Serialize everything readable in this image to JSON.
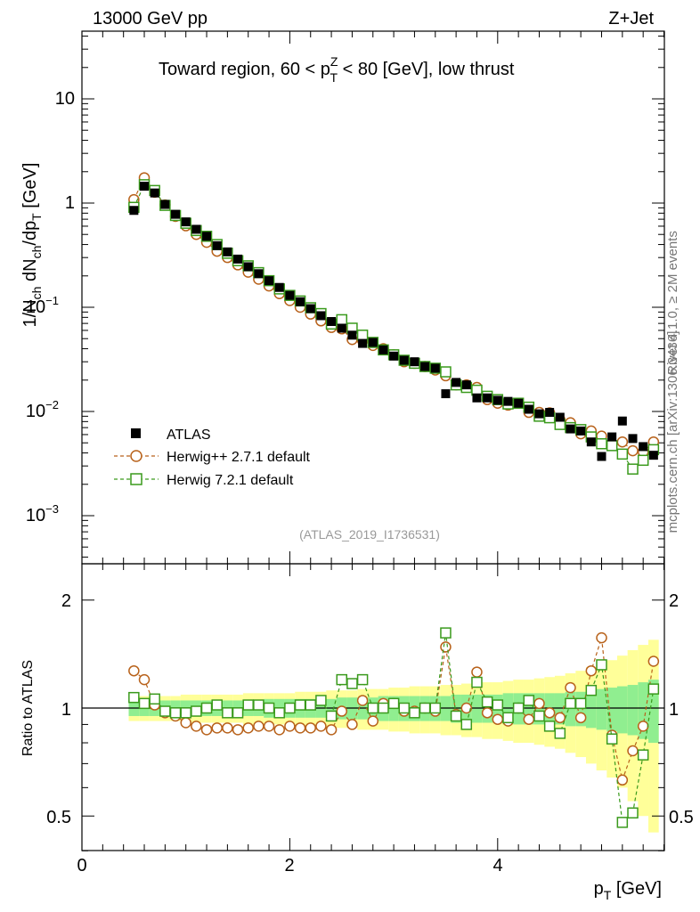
{
  "header": {
    "energy_label": "13000 GeV pp",
    "process_label": "Z+Jet",
    "region_prefix": "Toward region, 60 < p",
    "region_sup": "Z",
    "region_sub": "T",
    "region_suffix": " < 80 [GeV], low thrust",
    "analysis_id": "(ATLAS_2019_I1736531)",
    "rivet_label": "Rivet 4.1.0, ≥ 2M events",
    "mcplots_label": "mcplots.cern.ch [arXiv:1306.3436]"
  },
  "axes": {
    "y_main": "1/N_ch dN_ch/dp_T [GeV]",
    "y_ratio": "Ratio to ATLAS",
    "x": "p_T [GeV]",
    "main_ticks": [
      "10^-3",
      "10^-2",
      "10^-1",
      "1",
      "10"
    ],
    "ratio_ticks": [
      "0.5",
      "1",
      "2"
    ],
    "x_ticks": [
      "0",
      "2",
      "4"
    ]
  },
  "colors": {
    "data": "#000000",
    "herwigpp": "#b8621b",
    "herwig7": "#3a9a1c",
    "band_inner": "#90ee90",
    "band_outer": "#ffff99"
  },
  "chart_data": {
    "type": "scatter",
    "title": "Toward region, 60 < pT(Z) < 80 [GeV], low thrust",
    "xlabel": "pT [GeV]",
    "ylabel": "1/Nch dNch/dpT [GeV]",
    "ylabel_ratio": "Ratio to ATLAS",
    "xlim": [
      0,
      5.6
    ],
    "ylim": [
      0.0003,
      50
    ],
    "yscale": "log",
    "ratio_ylim": [
      0.35,
      2.45
    ],
    "x": [
      0.5,
      0.6,
      0.7,
      0.8,
      0.9,
      1.0,
      1.1,
      1.2,
      1.3,
      1.4,
      1.5,
      1.6,
      1.7,
      1.8,
      1.9,
      2.0,
      2.1,
      2.2,
      2.3,
      2.4,
      2.5,
      2.6,
      2.7,
      2.8,
      2.9,
      3.0,
      3.1,
      3.2,
      3.3,
      3.4,
      3.5,
      3.6,
      3.7,
      3.8,
      3.9,
      4.0,
      4.1,
      4.2,
      4.3,
      4.4,
      4.5,
      4.6,
      4.7,
      4.8,
      4.9,
      5.0,
      5.1,
      5.2,
      5.3,
      5.4,
      5.5
    ],
    "legend": [
      "ATLAS",
      "Herwig++ 2.7.1 default",
      "Herwig 7.2.1 default"
    ],
    "series": [
      {
        "name": "ATLAS",
        "marker": "filled-square",
        "values": [
          0.85,
          1.45,
          1.25,
          0.97,
          0.78,
          0.66,
          0.56,
          0.48,
          0.39,
          0.34,
          0.29,
          0.245,
          0.21,
          0.18,
          0.155,
          0.13,
          0.113,
          0.097,
          0.083,
          0.073,
          0.063,
          0.054,
          0.045,
          0.046,
          0.039,
          0.034,
          0.031,
          0.03,
          0.027,
          0.026,
          0.0148,
          0.019,
          0.018,
          0.0135,
          0.0135,
          0.0128,
          0.0125,
          0.012,
          0.0105,
          0.0095,
          0.0098,
          0.0088,
          0.0068,
          0.0065,
          0.0051,
          0.0037,
          0.0057,
          0.0081,
          0.0055,
          0.0046,
          0.0038
        ]
      },
      {
        "name": "Herwig++ 2.7.1 default",
        "marker": "open-circle",
        "values": [
          1.08,
          1.75,
          1.27,
          0.96,
          0.745,
          0.605,
          0.5,
          0.42,
          0.345,
          0.3,
          0.255,
          0.217,
          0.186,
          0.16,
          0.135,
          0.116,
          0.1,
          0.086,
          0.074,
          0.064,
          0.062,
          0.049,
          0.048,
          0.043,
          0.04,
          0.035,
          0.03,
          0.029,
          0.027,
          0.025,
          0.022,
          0.018,
          0.018,
          0.017,
          0.013,
          0.012,
          0.0115,
          0.012,
          0.0098,
          0.0098,
          0.0097,
          0.0083,
          0.0078,
          0.0061,
          0.0065,
          0.0058,
          0.0048,
          0.0051,
          0.0042,
          0.0041,
          0.0051
        ]
      },
      {
        "name": "Herwig 7.2.1 default",
        "marker": "open-square",
        "values": [
          0.91,
          1.5,
          1.32,
          0.95,
          0.76,
          0.64,
          0.545,
          0.48,
          0.4,
          0.33,
          0.28,
          0.25,
          0.215,
          0.18,
          0.15,
          0.13,
          0.115,
          0.099,
          0.087,
          0.069,
          0.076,
          0.063,
          0.054,
          0.046,
          0.039,
          0.035,
          0.031,
          0.029,
          0.027,
          0.026,
          0.024,
          0.018,
          0.017,
          0.016,
          0.014,
          0.013,
          0.0118,
          0.012,
          0.011,
          0.009,
          0.0087,
          0.0075,
          0.007,
          0.0067,
          0.0057,
          0.0049,
          0.0047,
          0.0039,
          0.0028,
          0.0034,
          0.0043
        ]
      }
    ],
    "ratio_series": [
      {
        "name": "Herwig++ 2.7.1 default",
        "values": [
          1.27,
          1.2,
          1.02,
          0.97,
          0.95,
          0.91,
          0.89,
          0.87,
          0.88,
          0.88,
          0.87,
          0.88,
          0.89,
          0.89,
          0.87,
          0.89,
          0.88,
          0.88,
          0.89,
          0.87,
          0.98,
          0.9,
          1.05,
          0.92,
          1.03,
          1.03,
          0.98,
          0.98,
          1.0,
          0.98,
          1.48,
          0.96,
          1.0,
          1.26,
          0.97,
          0.93,
          0.92,
          1.0,
          0.93,
          1.03,
          0.97,
          0.94,
          1.14,
          0.94,
          1.27,
          1.57,
          0.84,
          0.63,
          0.76,
          0.89,
          1.35
        ]
      },
      {
        "name": "Herwig 7.2.1 default",
        "values": [
          1.07,
          1.03,
          1.06,
          0.98,
          0.97,
          0.97,
          0.98,
          1.0,
          1.02,
          0.97,
          0.97,
          1.02,
          1.02,
          1.0,
          0.97,
          1.0,
          1.02,
          1.02,
          1.05,
          0.95,
          1.2,
          1.17,
          1.2,
          1.0,
          1.0,
          1.03,
          1.0,
          0.97,
          1.0,
          1.0,
          1.62,
          0.95,
          0.9,
          1.18,
          1.04,
          1.02,
          0.94,
          1.0,
          1.05,
          0.95,
          0.89,
          0.85,
          1.03,
          1.03,
          1.12,
          1.32,
          0.82,
          0.48,
          0.51,
          0.74,
          1.13
        ]
      }
    ],
    "band_inner": [
      0.05,
      0.05,
      0.05,
      0.05,
      0.05,
      0.05,
      0.05,
      0.05,
      0.05,
      0.05,
      0.05,
      0.05,
      0.05,
      0.06,
      0.06,
      0.06,
      0.06,
      0.06,
      0.06,
      0.06,
      0.07,
      0.07,
      0.07,
      0.07,
      0.08,
      0.08,
      0.08,
      0.08,
      0.08,
      0.08,
      0.08,
      0.09,
      0.09,
      0.09,
      0.09,
      0.09,
      0.1,
      0.1,
      0.1,
      0.1,
      0.1,
      0.1,
      0.11,
      0.11,
      0.12,
      0.13,
      0.14,
      0.15,
      0.16,
      0.18,
      0.2
    ],
    "band_outer": [
      0.08,
      0.08,
      0.08,
      0.08,
      0.08,
      0.09,
      0.09,
      0.09,
      0.09,
      0.09,
      0.09,
      0.1,
      0.1,
      0.1,
      0.1,
      0.1,
      0.11,
      0.11,
      0.11,
      0.12,
      0.12,
      0.12,
      0.13,
      0.13,
      0.13,
      0.14,
      0.14,
      0.15,
      0.15,
      0.15,
      0.16,
      0.16,
      0.17,
      0.17,
      0.18,
      0.18,
      0.19,
      0.2,
      0.2,
      0.21,
      0.22,
      0.23,
      0.25,
      0.27,
      0.3,
      0.33,
      0.36,
      0.4,
      0.45,
      0.5,
      0.55
    ]
  }
}
